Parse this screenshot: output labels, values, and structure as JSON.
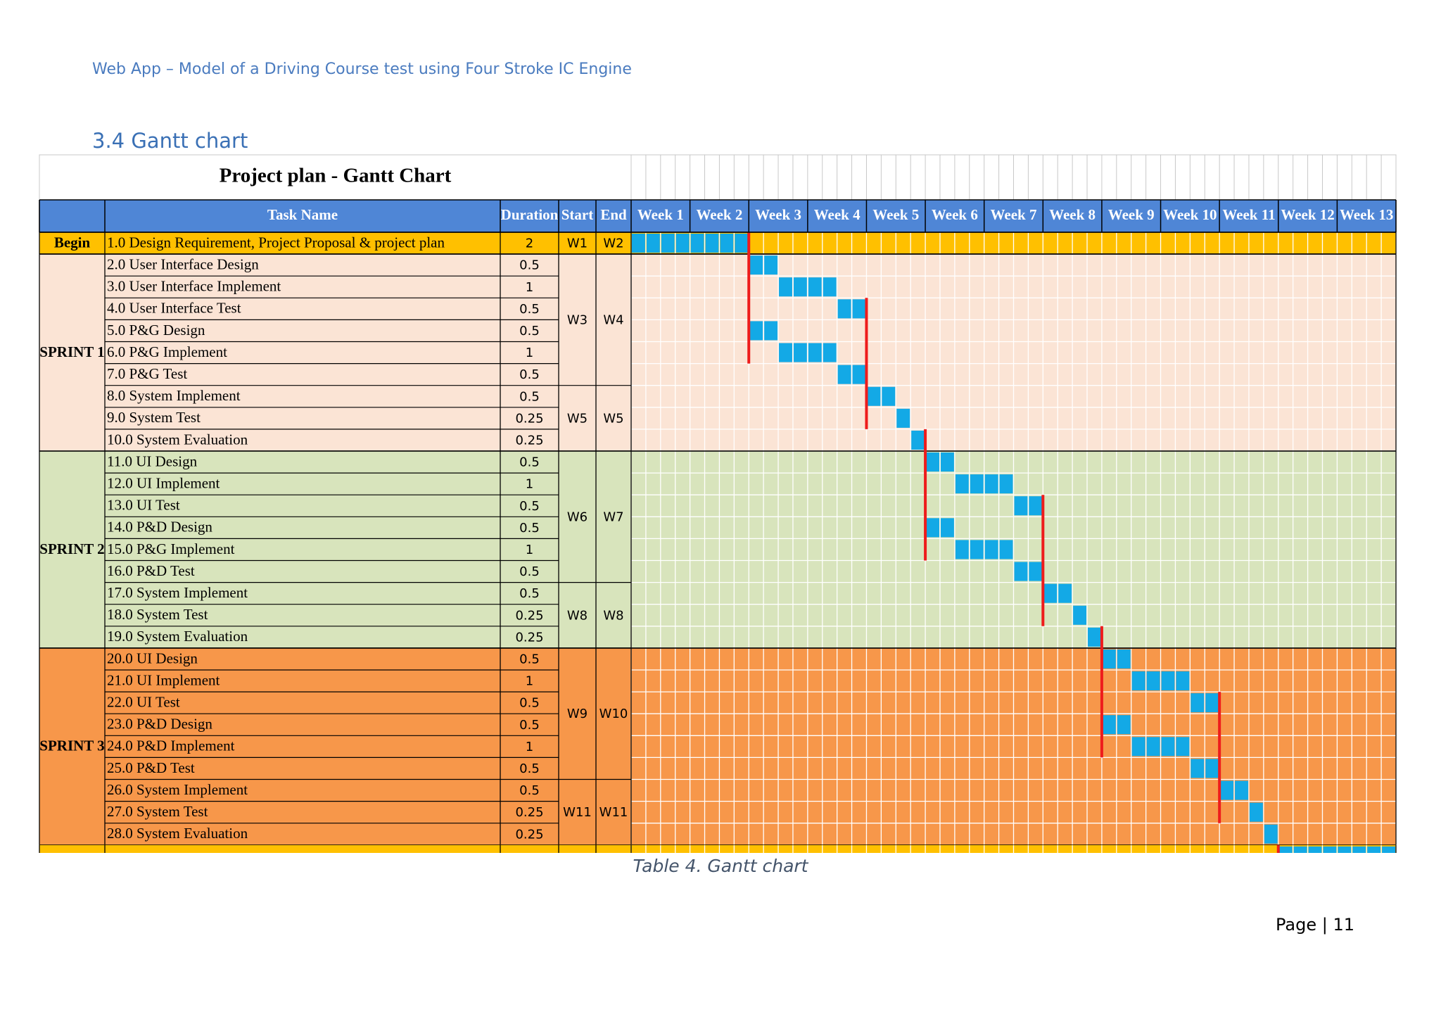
{
  "header": {
    "running_title": "Web App – Model of a Driving Course test using Four Stroke IC Engine"
  },
  "section": {
    "title": "3.4 Gantt chart"
  },
  "caption": "Table 4. Gantt chart",
  "footer": {
    "page": "Page | 11"
  },
  "colors": {
    "header_blue": "#4f86d6",
    "begin_yellow": "#ffc000",
    "sprint1_peach": "#fbe4d5",
    "sprint2_green": "#d8e4bc",
    "sprint3_orange": "#f7974a",
    "task_cyan": "#13a9e6",
    "dependency_red": "#ee1c1c"
  },
  "chart_data": {
    "type": "table",
    "title": "Project plan - Gantt Chart",
    "columns": [
      "Task Name",
      "Duration",
      "Start",
      "End"
    ],
    "weeks": [
      "Week 1",
      "Week 2",
      "Week 3",
      "Week 4",
      "Week 5",
      "Week 6",
      "Week 7",
      "Week 8",
      "Week 9",
      "Week 10",
      "Week 11",
      "Week 12",
      "Week 13"
    ],
    "groups": [
      {
        "label": "Begin",
        "band": "begin",
        "rows": [
          {
            "name": "1.0  Design Requirement, Project Proposal & project plan",
            "duration": "2",
            "start_day": 0,
            "days": 8
          }
        ],
        "spans": [
          {
            "start": "W1",
            "end": "W2",
            "rows": 1
          }
        ]
      },
      {
        "label": "SPRINT 1",
        "band": "s1",
        "rows": [
          {
            "name": "2.0  User Interface Design",
            "duration": "0.5",
            "start_day": 8,
            "days": 2
          },
          {
            "name": "3.0 User Interface Implement",
            "duration": "1",
            "start_day": 10,
            "days": 4
          },
          {
            "name": "4.0 User Interface Test",
            "duration": "0.5",
            "start_day": 14,
            "days": 2
          },
          {
            "name": "5.0 P&G Design",
            "duration": "0.5",
            "start_day": 8,
            "days": 2
          },
          {
            "name": "6.0 P&G Implement",
            "duration": "1",
            "start_day": 10,
            "days": 4
          },
          {
            "name": "7.0 P&G Test",
            "duration": "0.5",
            "start_day": 14,
            "days": 2
          },
          {
            "name": "8.0 System Implement",
            "duration": "0.5",
            "start_day": 16,
            "days": 2
          },
          {
            "name": "9.0 System Test",
            "duration": "0.25",
            "start_day": 18,
            "days": 1
          },
          {
            "name": "10.0 System Evaluation",
            "duration": "0.25",
            "start_day": 19,
            "days": 1
          }
        ],
        "spans": [
          {
            "start": "W3",
            "end": "W4",
            "rows": 6
          },
          {
            "start": "W5",
            "end": "W5",
            "rows": 3
          }
        ]
      },
      {
        "label": "SPRINT 2",
        "band": "s2",
        "rows": [
          {
            "name": "11.0 UI Design",
            "duration": "0.5",
            "start_day": 20,
            "days": 2
          },
          {
            "name": "12.0 UI Implement",
            "duration": "1",
            "start_day": 22,
            "days": 4
          },
          {
            "name": "13.0 UI Test",
            "duration": "0.5",
            "start_day": 26,
            "days": 2
          },
          {
            "name": "14.0 P&D Design",
            "duration": "0.5",
            "start_day": 20,
            "days": 2
          },
          {
            "name": "15.0 P&G Implement",
            "duration": "1",
            "start_day": 22,
            "days": 4
          },
          {
            "name": "16.0 P&D Test",
            "duration": "0.5",
            "start_day": 26,
            "days": 2
          },
          {
            "name": "17.0 System Implement",
            "duration": "0.5",
            "start_day": 28,
            "days": 2
          },
          {
            "name": "18.0 System Test",
            "duration": "0.25",
            "start_day": 30,
            "days": 1
          },
          {
            "name": "19.0 System Evaluation",
            "duration": "0.25",
            "start_day": 31,
            "days": 1
          }
        ],
        "spans": [
          {
            "start": "W6",
            "end": "W7",
            "rows": 6
          },
          {
            "start": "W8",
            "end": "W8",
            "rows": 3
          }
        ]
      },
      {
        "label": "SPRINT 3",
        "band": "s3",
        "rows": [
          {
            "name": "20.0 UI Design",
            "duration": "0.5",
            "start_day": 32,
            "days": 2
          },
          {
            "name": "21.0 UI Implement",
            "duration": "1",
            "start_day": 34,
            "days": 4
          },
          {
            "name": "22.0 UI Test",
            "duration": "0.5",
            "start_day": 38,
            "days": 2
          },
          {
            "name": "23.0 P&D Design",
            "duration": "0.5",
            "start_day": 32,
            "days": 2
          },
          {
            "name": "24.0 P&D Implement",
            "duration": "1",
            "start_day": 34,
            "days": 4
          },
          {
            "name": "25.0 P&D Test",
            "duration": "0.5",
            "start_day": 38,
            "days": 2
          },
          {
            "name": "26.0 System Implement",
            "duration": "0.5",
            "start_day": 40,
            "days": 2
          },
          {
            "name": "27.0 System Test",
            "duration": "0.25",
            "start_day": 42,
            "days": 1
          },
          {
            "name": "28.0 System Evaluation",
            "duration": "0.25",
            "start_day": 43,
            "days": 1
          }
        ],
        "spans": [
          {
            "start": "W9",
            "end": "W10",
            "rows": 6
          },
          {
            "start": "W11",
            "end": "W11",
            "rows": 3
          }
        ]
      }
    ],
    "dependency_lines": [
      {
        "day": 8,
        "from_row": 0,
        "to_row": 5
      },
      {
        "day": 16,
        "from_row": 3,
        "to_row": 8
      },
      {
        "day": 20,
        "from_row": 9,
        "to_row": 14
      },
      {
        "day": 28,
        "from_row": 12,
        "to_row": 17
      },
      {
        "day": 32,
        "from_row": 18,
        "to_row": 23
      },
      {
        "day": 40,
        "from_row": 21,
        "to_row": 26
      },
      {
        "day": 44,
        "from_row": 28,
        "to_row": 29
      }
    ],
    "final_row": {
      "band": "begin",
      "start_day": 44,
      "days": 8
    }
  }
}
